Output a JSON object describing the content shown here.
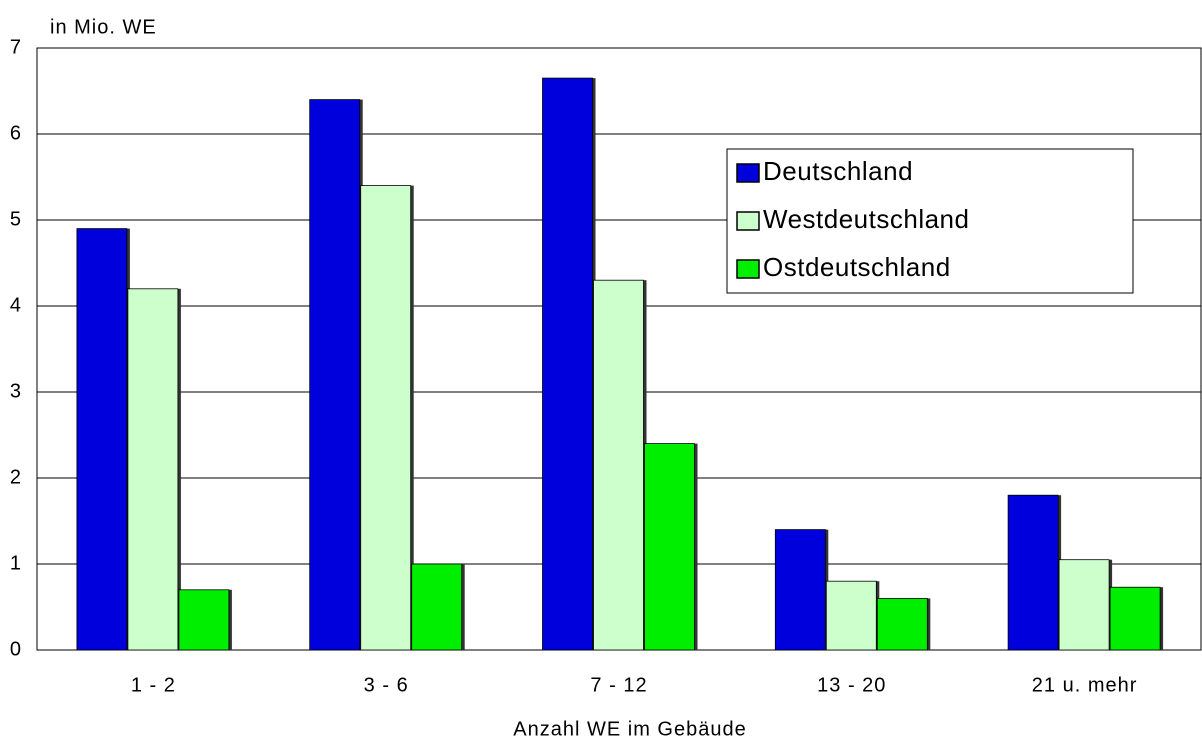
{
  "chart_data": {
    "type": "bar",
    "ylabel": "in Mio. WE",
    "xlabel": "Anzahl WE im Gebäude",
    "categories": [
      "1 - 2",
      "3 - 6",
      "7 - 12",
      "13 - 20",
      "21 u. mehr"
    ],
    "series": [
      {
        "name": "Deutschland",
        "color": "#0000dd",
        "values": [
          4.9,
          6.4,
          6.65,
          1.4,
          1.8
        ]
      },
      {
        "name": "Westdeutschland",
        "color": "#ccffcc",
        "values": [
          4.2,
          5.4,
          4.3,
          0.8,
          1.05
        ]
      },
      {
        "name": "Ostdeutschland",
        "color": "#00ee00",
        "values": [
          0.7,
          1.0,
          2.4,
          0.6,
          0.73
        ]
      }
    ],
    "ylim": [
      0,
      7
    ],
    "yticks": [
      0,
      1,
      2,
      3,
      4,
      5,
      6,
      7
    ],
    "grid": true,
    "legend": "upper right"
  }
}
